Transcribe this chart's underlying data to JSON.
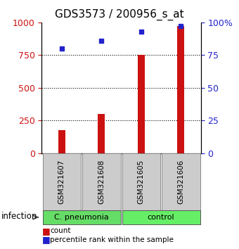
{
  "title": "GDS3573 / 200956_s_at",
  "samples": [
    "GSM321607",
    "GSM321608",
    "GSM321605",
    "GSM321606"
  ],
  "counts": [
    175,
    300,
    750,
    975
  ],
  "percentiles": [
    80,
    86,
    93,
    97
  ],
  "groups": [
    {
      "label": "C. pneumonia",
      "indices": [
        0,
        1
      ],
      "color": "#66dd66"
    },
    {
      "label": "control",
      "indices": [
        2,
        3
      ],
      "color": "#66ee66"
    }
  ],
  "group_label": "infection",
  "bar_color": "#cc1111",
  "point_color": "#2222cc",
  "left_ylim": [
    0,
    1000
  ],
  "right_ylim": [
    0,
    100
  ],
  "left_yticks": [
    0,
    250,
    500,
    750,
    1000
  ],
  "right_yticks": [
    0,
    25,
    50,
    75,
    100
  ],
  "right_yticklabels": [
    "0",
    "25",
    "50",
    "75",
    "100%"
  ],
  "grid_values": [
    250,
    500,
    750
  ],
  "legend_count_label": "count",
  "legend_pct_label": "percentile rank within the sample",
  "bg_color": "#ffffff",
  "plot_bg_color": "#ffffff",
  "sample_box_color": "#cccccc",
  "title_fontsize": 11,
  "tick_fontsize": 9
}
